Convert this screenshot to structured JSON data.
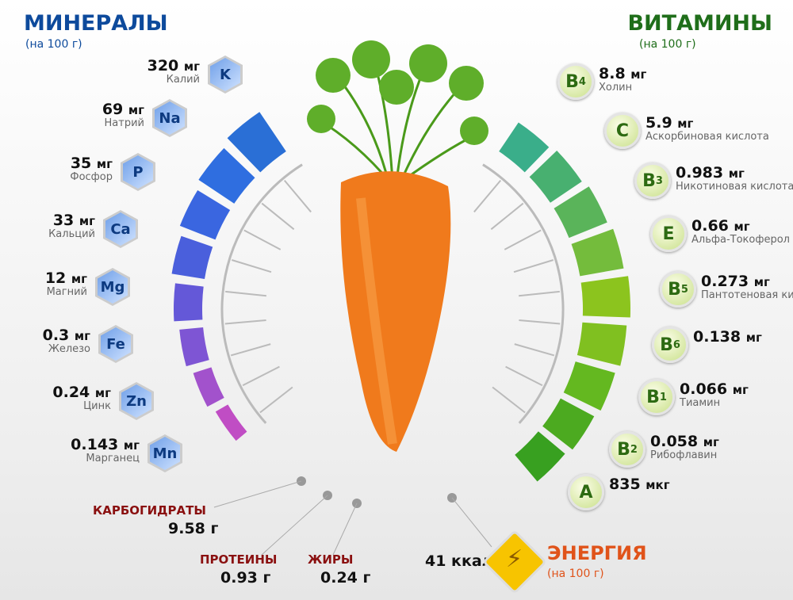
{
  "minerals": {
    "title": "МИНЕРАЛЫ",
    "subtitle": "(на 100 г)",
    "color": "#0d4a9c",
    "items": [
      {
        "symbol": "K",
        "value": "320",
        "unit": "мг",
        "name": "Калий"
      },
      {
        "symbol": "Na",
        "value": "69",
        "unit": "мг",
        "name": "Натрий"
      },
      {
        "symbol": "P",
        "value": "35",
        "unit": "мг",
        "name": "Фосфор"
      },
      {
        "symbol": "Ca",
        "value": "33",
        "unit": "мг",
        "name": "Кальций"
      },
      {
        "symbol": "Mg",
        "value": "12",
        "unit": "мг",
        "name": "Магний"
      },
      {
        "symbol": "Fe",
        "value": "0.3",
        "unit": "мг",
        "name": "Железо"
      },
      {
        "symbol": "Zn",
        "value": "0.24",
        "unit": "мг",
        "name": "Цинк"
      },
      {
        "symbol": "Mn",
        "value": "0.143",
        "unit": "мг",
        "name": "Марганец"
      }
    ]
  },
  "vitamins": {
    "title": "ВИТАМИНЫ",
    "subtitle": "(на 100 г)",
    "color": "#1f6e1a",
    "items": [
      {
        "symbol": "B",
        "index": "4",
        "value": "8.8",
        "unit": "мг",
        "name": "Холин"
      },
      {
        "symbol": "C",
        "index": "",
        "value": "5.9",
        "unit": "мг",
        "name": "Аскорбиновая кислота"
      },
      {
        "symbol": "B",
        "index": "3",
        "value": "0.983",
        "unit": "мг",
        "name": "Никотиновая кислота"
      },
      {
        "symbol": "E",
        "index": "",
        "value": "0.66",
        "unit": "мг",
        "name": "Альфа-Токоферол"
      },
      {
        "symbol": "B",
        "index": "5",
        "value": "0.273",
        "unit": "мг",
        "name": "Пантотеновая кислота"
      },
      {
        "symbol": "B",
        "index": "6",
        "value": "0.138",
        "unit": "мг",
        "name": ""
      },
      {
        "symbol": "B",
        "index": "1",
        "value": "0.066",
        "unit": "мг",
        "name": "Тиамин"
      },
      {
        "symbol": "B",
        "index": "2",
        "value": "0.058",
        "unit": "мг",
        "name": "Рибофлавин"
      },
      {
        "symbol": "A",
        "index": "",
        "value": "835",
        "unit": "мкг",
        "name": ""
      }
    ]
  },
  "macros": {
    "carbs": {
      "label": "КАРБОГИДРАТЫ",
      "value": "9.58 г"
    },
    "protein": {
      "label": "ПРОТЕИНЫ",
      "value": "0.93 г"
    },
    "fat": {
      "label": "ЖИРЫ",
      "value": "0.24 г"
    }
  },
  "energy": {
    "label": "ЭНЕРГИЯ",
    "subtitle": "(на 100 г)",
    "value": "41 ккал",
    "color": "#e0531a",
    "icon": "lightning-icon"
  }
}
